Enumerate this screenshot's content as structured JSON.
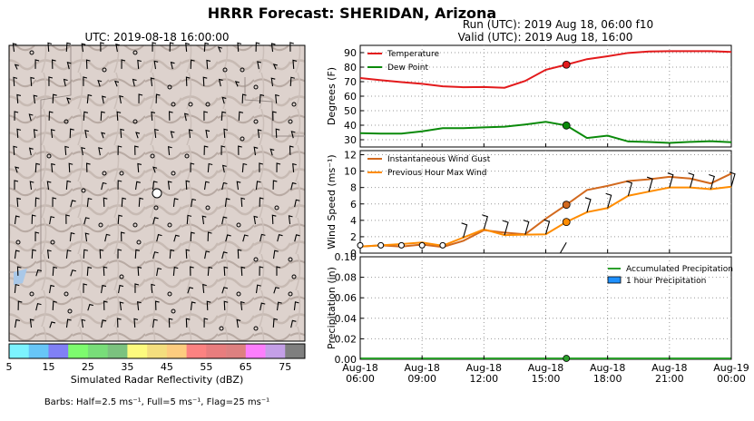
{
  "suptitle": "HRRR Forecast: SHERIDAN, Arizona",
  "map": {
    "title": "UTC: 2019-08-18 16:00:00",
    "colorbar": {
      "label": "Simulated Radar Reflectivity (dBZ)",
      "ticks": [
        "5",
        "15",
        "25",
        "35",
        "45",
        "55",
        "65",
        "75"
      ],
      "colors": [
        "#7cf3ff",
        "#67c6f7",
        "#8080f5",
        "#7dfb6e",
        "#78dd79",
        "#7bc27f",
        "#fdfa7e",
        "#f4de7e",
        "#fdcc7f",
        "#fc8281",
        "#e87d7e",
        "#dd8080",
        "#fc7efd",
        "#c49fe7",
        "#7f7f7f"
      ]
    },
    "barb_note": "Barbs: Half=2.5 ms⁻¹, Full=5 ms⁻¹, Flag=25 ms⁻¹"
  },
  "run_label": "Run (UTC): 2019 Aug 18, 06:00 f10",
  "valid_label": "Valid (UTC): 2019 Aug 18, 16:00",
  "x_ticks": [
    {
      "hour": 6,
      "line1": "Aug-18",
      "line2": "06:00"
    },
    {
      "hour": 9,
      "line1": "Aug-18",
      "line2": "09:00"
    },
    {
      "hour": 12,
      "line1": "Aug-18",
      "line2": "12:00"
    },
    {
      "hour": 15,
      "line1": "Aug-18",
      "line2": "15:00"
    },
    {
      "hour": 18,
      "line1": "Aug-18",
      "line2": "18:00"
    },
    {
      "hour": 21,
      "line1": "Aug-18",
      "line2": "21:00"
    },
    {
      "hour": 24,
      "line1": "Aug-19",
      "line2": "00:00"
    }
  ],
  "chart_data": [
    {
      "type": "line",
      "ylabel": "Degrees (F)",
      "ylim": [
        25,
        95
      ],
      "yticks": [
        30,
        40,
        50,
        60,
        70,
        80,
        90
      ],
      "x": [
        6,
        7,
        8,
        9,
        10,
        11,
        12,
        13,
        14,
        15,
        16,
        17,
        18,
        19,
        20,
        21,
        22,
        23,
        24
      ],
      "series": [
        {
          "name": "Temperature",
          "color": "#e31a1c",
          "values": [
            72.5,
            71,
            69.7,
            68.5,
            66.8,
            66.2,
            66.3,
            65.8,
            70.5,
            78.2,
            81.7,
            85.5,
            87.5,
            89.8,
            90.8,
            91,
            91,
            91,
            90.5
          ]
        },
        {
          "name": "Dew Point",
          "color": "#0a8a0a",
          "values": [
            34.5,
            34.2,
            34.2,
            35.8,
            38,
            38,
            38.5,
            39,
            40.5,
            42.3,
            39.8,
            31.2,
            32.8,
            28.8,
            28.4,
            27.8,
            28.5,
            29,
            28.3
          ]
        }
      ],
      "marker_hour": 16,
      "legend": "top-left",
      "grid": true
    },
    {
      "type": "line",
      "ylabel": "Wind Speed (ms⁻¹)",
      "ylim": [
        0,
        12.5
      ],
      "yticks": [
        0,
        2,
        4,
        6,
        8,
        10,
        12
      ],
      "x": [
        6,
        7,
        8,
        9,
        10,
        11,
        12,
        13,
        14,
        15,
        16,
        17,
        18,
        19,
        20,
        21,
        22,
        23,
        24
      ],
      "series": [
        {
          "name": "Instantaneous Wind Gust",
          "color": "#d2691e",
          "values": [
            0.8,
            0.95,
            0.8,
            1.05,
            0.75,
            1.5,
            2.8,
            2.5,
            2.3,
            4.2,
            5.9,
            7.7,
            8.2,
            8.8,
            9,
            9.3,
            9.1,
            8.5,
            9.7
          ]
        },
        {
          "name": "Previous Hour Max Wind",
          "color": "#ff8c00",
          "values": [
            0.8,
            0.95,
            1.1,
            1.3,
            0.9,
            1.9,
            2.9,
            2.2,
            2.25,
            2.3,
            3.8,
            5,
            5.5,
            7,
            7.5,
            8,
            8,
            7.8,
            8.1
          ]
        }
      ],
      "calm_hours": [
        6,
        7,
        8,
        9,
        10
      ],
      "marker_hour": 16,
      "legend": "top-left",
      "grid": true
    },
    {
      "type": "bar",
      "ylabel": "Precipitation (in)",
      "ylim": [
        0,
        0.1
      ],
      "yticks": [
        "0.00",
        "0.02",
        "0.04",
        "0.06",
        "0.08",
        "0.10"
      ],
      "series": [
        {
          "name": "Accumulated Precipitation",
          "color": "#2ca02c",
          "values": [
            0,
            0,
            0,
            0,
            0,
            0,
            0,
            0,
            0,
            0,
            0,
            0,
            0,
            0,
            0,
            0,
            0,
            0,
            0
          ]
        },
        {
          "name": "1 hour Precipitation",
          "color": "#1e90ff",
          "values": [
            0,
            0,
            0,
            0,
            0,
            0,
            0,
            0,
            0,
            0,
            0,
            0,
            0,
            0,
            0,
            0,
            0,
            0,
            0
          ]
        }
      ],
      "marker_hour": 16,
      "legend": "top-right",
      "grid": true
    }
  ]
}
